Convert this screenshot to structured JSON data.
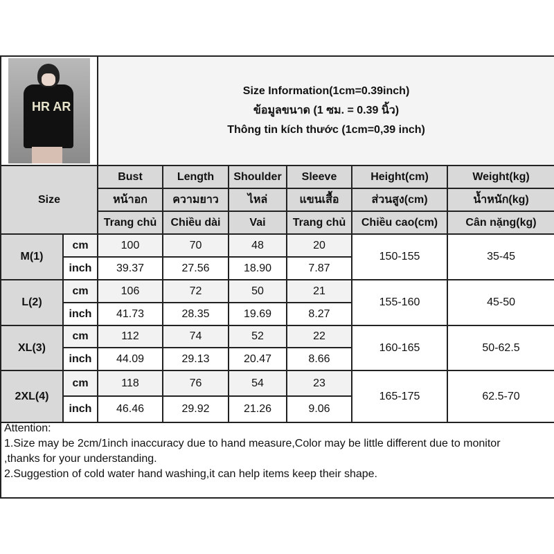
{
  "title": {
    "line1": "Size Information(1cm=0.39inch)",
    "line2": "ข้อมูลขนาด (1 ซม. = 0.39 นิ้ว)",
    "line3": "Thông tin kích thước (1cm=0,39 inch)"
  },
  "size_header": "Size",
  "columns": [
    {
      "en": "Bust",
      "th": "หน้าอก",
      "vi": "Trang chủ"
    },
    {
      "en": "Length",
      "th": "ความยาว",
      "vi": "Chiều dài"
    },
    {
      "en": "Shoulder",
      "th": "ไหล่",
      "vi": "Vai"
    },
    {
      "en": "Sleeve",
      "th": "แขนเสื้อ",
      "vi": "Trang chủ"
    },
    {
      "en": "Height(cm)",
      "th": "ส่วนสูง(cm)",
      "vi": "Chiều cao(cm)"
    },
    {
      "en": "Weight(kg)",
      "th": "น้ำหนัก(kg)",
      "vi": "Cân nặng(kg)"
    }
  ],
  "units": {
    "cm": "cm",
    "inch": "inch"
  },
  "rows": [
    {
      "size": "M(1)",
      "cm": [
        "100",
        "70",
        "48",
        "20"
      ],
      "inch": [
        "39.37",
        "27.56",
        "18.90",
        "7.87"
      ],
      "height": "150-155",
      "weight": "35-45"
    },
    {
      "size": "L(2)",
      "cm": [
        "106",
        "72",
        "50",
        "21"
      ],
      "inch": [
        "41.73",
        "28.35",
        "19.69",
        "8.27"
      ],
      "height": "155-160",
      "weight": "45-50"
    },
    {
      "size": "XL(3)",
      "cm": [
        "112",
        "74",
        "52",
        "22"
      ],
      "inch": [
        "44.09",
        "29.13",
        "20.47",
        "8.66"
      ],
      "height": "160-165",
      "weight": "50-62.5"
    },
    {
      "size": "2XL(4)",
      "cm": [
        "118",
        "76",
        "54",
        "23"
      ],
      "inch": [
        "46.46",
        "29.92",
        "21.26",
        "9.06"
      ],
      "height": "165-175",
      "weight": "62.5-70"
    }
  ],
  "attention": [
    "Attention:",
    "1.Size may be 2cm/1inch inaccuracy due to hand measure,Color may be little different due to monitor",
    ",thanks for your understanding.",
    "2.Suggestion of cold water hand washing,it can help items keep their shape."
  ],
  "photo": {
    "shirt_print": "HR AR"
  }
}
